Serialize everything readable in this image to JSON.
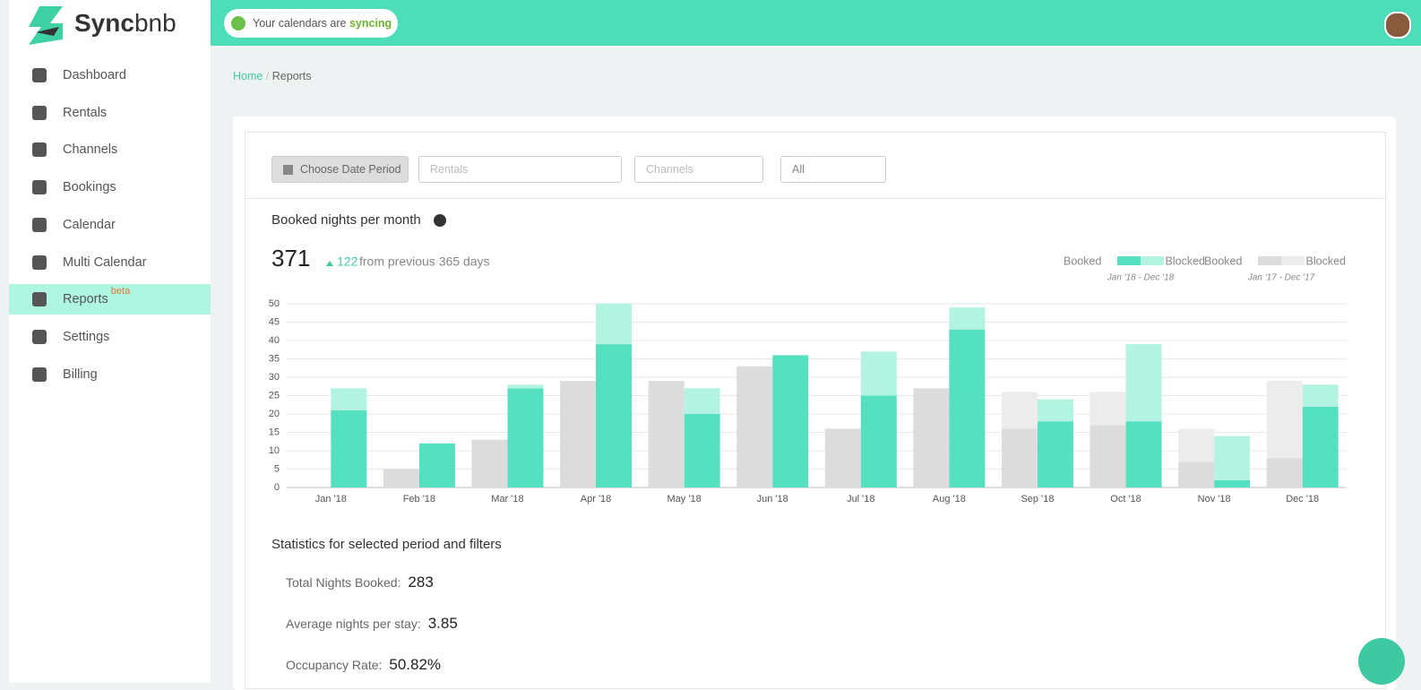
{
  "header": {
    "logo_bold": "Sync",
    "logo_light": "bnb",
    "sync_text": "Your calendars are",
    "sync_status": "syncing"
  },
  "nav": [
    {
      "label": "Dashboard"
    },
    {
      "label": "Rentals"
    },
    {
      "label": "Channels"
    },
    {
      "label": "Bookings"
    },
    {
      "label": "Calendar"
    },
    {
      "label": "Multi Calendar"
    },
    {
      "label": "Reports",
      "badge": "beta"
    },
    {
      "label": "Settings"
    },
    {
      "label": "Billing"
    }
  ],
  "breadcrumb": [
    "Home",
    "Reports"
  ],
  "filters": [
    "Choose Date Period",
    "Rentals",
    "Channels",
    "All"
  ],
  "summary": {
    "total": 371,
    "change": 122,
    "change_text": "from previous 365 days"
  },
  "chart_data": {
    "type": "stacked_bar",
    "title": "Booked nights per month",
    "categories": [
      "Jan '18",
      "Feb '18",
      "Mar '18",
      "Apr '18",
      "May '18",
      "Jun '18",
      "Jul '18",
      "Aug '18",
      "Sep '18",
      "Oct '18",
      "Nov '18",
      "Dec '18"
    ],
    "periods": [
      "Jan '18 - Dec '18",
      "Jan '17 - Dec '17"
    ],
    "series": [
      {
        "name": "Booked",
        "group": 0,
        "color": "#55e0bf",
        "values": [
          21,
          12,
          27,
          39,
          20,
          36,
          25,
          43,
          18,
          18,
          2,
          22
        ]
      },
      {
        "name": "Blocked",
        "group": 0,
        "color": "#b3f3e1",
        "values": [
          6,
          0,
          1,
          11,
          7,
          0,
          12,
          6,
          6,
          21,
          12,
          6
        ]
      },
      {
        "name": "Booked",
        "group": 1,
        "color": "#dcdcdc",
        "values": [
          0,
          5,
          13,
          29,
          29,
          33,
          16,
          27,
          16,
          17,
          7,
          8
        ]
      },
      {
        "name": "Blocked",
        "group": 1,
        "color": "#ececec",
        "values": [
          0,
          0,
          0,
          0,
          0,
          0,
          0,
          0,
          10,
          9,
          9,
          21
        ]
      }
    ],
    "ylim": [
      0,
      50
    ],
    "yticks": [
      0,
      5,
      10,
      15,
      20,
      25,
      30,
      35,
      40,
      45,
      50
    ],
    "grid": true
  },
  "stats": {
    "title": "Statistics for selected period and filters",
    "items": [
      {
        "label": "Total Nights Booked:",
        "value": 283
      },
      {
        "label": "Average nights per stay:",
        "value": 3.85
      },
      {
        "label": "Occupancy Rate:",
        "value": "50.82%"
      }
    ]
  }
}
